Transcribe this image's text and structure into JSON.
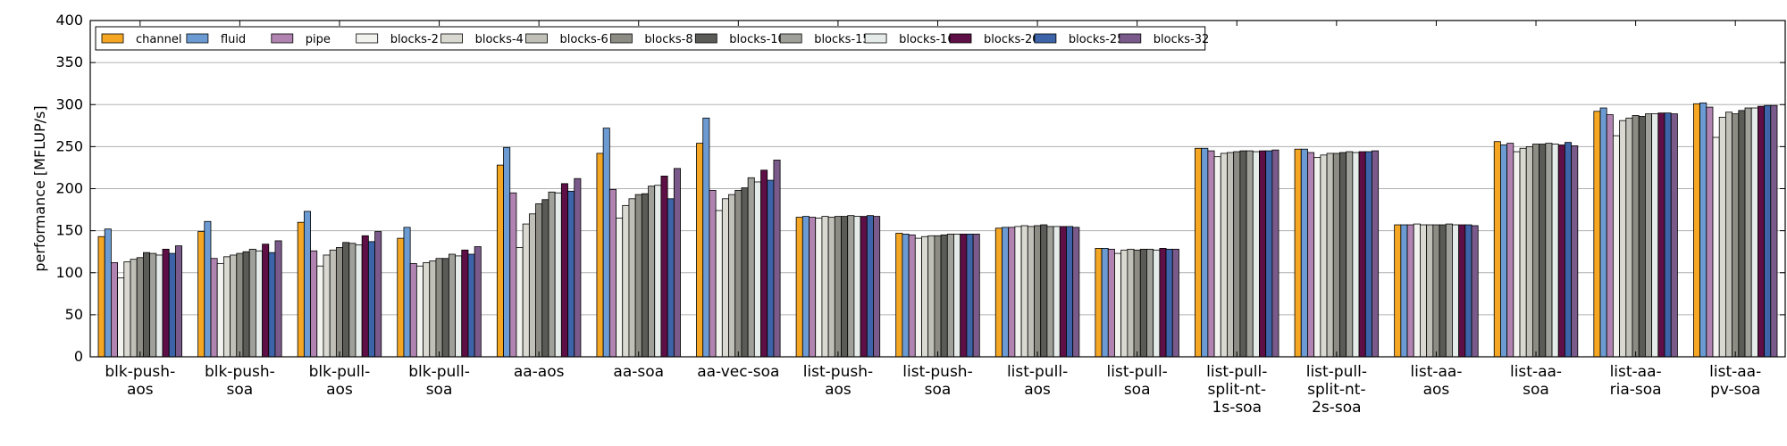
{
  "chart_data": {
    "type": "bar",
    "title": "",
    "xlabel": "",
    "ylabel": "performance [MFLUP/s]",
    "ylim": [
      0,
      400
    ],
    "yticks": [
      "0",
      "50",
      "100",
      "150",
      "200",
      "250",
      "300",
      "350",
      "400"
    ],
    "grid": "horizontal",
    "legend_position": "top-left",
    "categories": [
      [
        "blk-push-",
        "aos"
      ],
      [
        "blk-push-",
        "soa"
      ],
      [
        "blk-pull-",
        "aos"
      ],
      [
        "blk-pull-",
        "soa"
      ],
      [
        "aa-aos"
      ],
      [
        "aa-soa"
      ],
      [
        "aa-vec-soa"
      ],
      [
        "list-push-",
        "aos"
      ],
      [
        "list-push-",
        "soa"
      ],
      [
        "list-pull-",
        "aos"
      ],
      [
        "list-pull-",
        "soa"
      ],
      [
        "list-pull-",
        "split-nt-",
        "1s-soa"
      ],
      [
        "list-pull-",
        "split-nt-",
        "2s-soa"
      ],
      [
        "list-aa-",
        "aos"
      ],
      [
        "list-aa-",
        "soa"
      ],
      [
        "list-aa-",
        "ria-soa"
      ],
      [
        "list-aa-",
        "pv-soa"
      ]
    ],
    "series": [
      {
        "name": "channel",
        "color": "#f5a623",
        "values": [
          143,
          149,
          160,
          141,
          228,
          242,
          254,
          166,
          147,
          153,
          129,
          248,
          247,
          157,
          256,
          292,
          301
        ]
      },
      {
        "name": "fluid",
        "color": "#6b9bd2",
        "values": [
          152,
          161,
          173,
          154,
          249,
          272,
          284,
          167,
          146,
          154,
          129,
          248,
          247,
          157,
          252,
          296,
          302
        ]
      },
      {
        "name": "pipe",
        "color": "#b083b0",
        "values": [
          112,
          117,
          126,
          111,
          195,
          199,
          198,
          166,
          145,
          154,
          128,
          245,
          243,
          157,
          254,
          288,
          297
        ]
      },
      {
        "name": "blocks-2",
        "color": "#f2f2ee",
        "values": [
          94,
          111,
          108,
          108,
          130,
          165,
          174,
          165,
          141,
          155,
          123,
          238,
          237,
          158,
          244,
          263,
          261
        ]
      },
      {
        "name": "blocks-4",
        "color": "#d9d9d2",
        "values": [
          113,
          119,
          121,
          112,
          158,
          180,
          188,
          167,
          143,
          156,
          127,
          242,
          240,
          157,
          248,
          281,
          285
        ]
      },
      {
        "name": "blocks-6",
        "color": "#c0c0b8",
        "values": [
          116,
          121,
          127,
          114,
          170,
          188,
          193,
          166,
          144,
          155,
          128,
          243,
          242,
          157,
          250,
          284,
          291
        ]
      },
      {
        "name": "blocks-8",
        "color": "#8c8c84",
        "values": [
          118,
          123,
          130,
          117,
          182,
          193,
          198,
          167,
          144,
          156,
          127,
          244,
          242,
          157,
          253,
          287,
          289
        ]
      },
      {
        "name": "blocks-10",
        "color": "#5a5a56",
        "values": [
          124,
          125,
          136,
          117,
          187,
          194,
          201,
          167,
          145,
          157,
          128,
          245,
          243,
          157,
          253,
          286,
          293
        ]
      },
      {
        "name": "blocks-15",
        "color": "#a0a09a",
        "values": [
          123,
          128,
          135,
          122,
          196,
          203,
          213,
          168,
          146,
          155,
          128,
          245,
          244,
          158,
          254,
          289,
          296
        ]
      },
      {
        "name": "blocks-16",
        "color": "#e4ebe8",
        "values": [
          121,
          126,
          133,
          120,
          195,
          204,
          208,
          167,
          146,
          155,
          127,
          244,
          243,
          157,
          253,
          289,
          296
        ]
      },
      {
        "name": "blocks-20",
        "color": "#5e0f45",
        "values": [
          128,
          134,
          144,
          127,
          206,
          215,
          222,
          167,
          146,
          155,
          129,
          245,
          244,
          157,
          252,
          290,
          298
        ]
      },
      {
        "name": "blocks-25",
        "color": "#3d64a8",
        "values": [
          123,
          124,
          137,
          122,
          197,
          188,
          210,
          168,
          146,
          155,
          128,
          245,
          244,
          157,
          255,
          290,
          299
        ]
      },
      {
        "name": "blocks-32",
        "color": "#7a5a8a",
        "values": [
          132,
          138,
          149,
          131,
          212,
          224,
          234,
          167,
          146,
          154,
          128,
          246,
          245,
          156,
          251,
          289,
          299
        ]
      }
    ]
  }
}
